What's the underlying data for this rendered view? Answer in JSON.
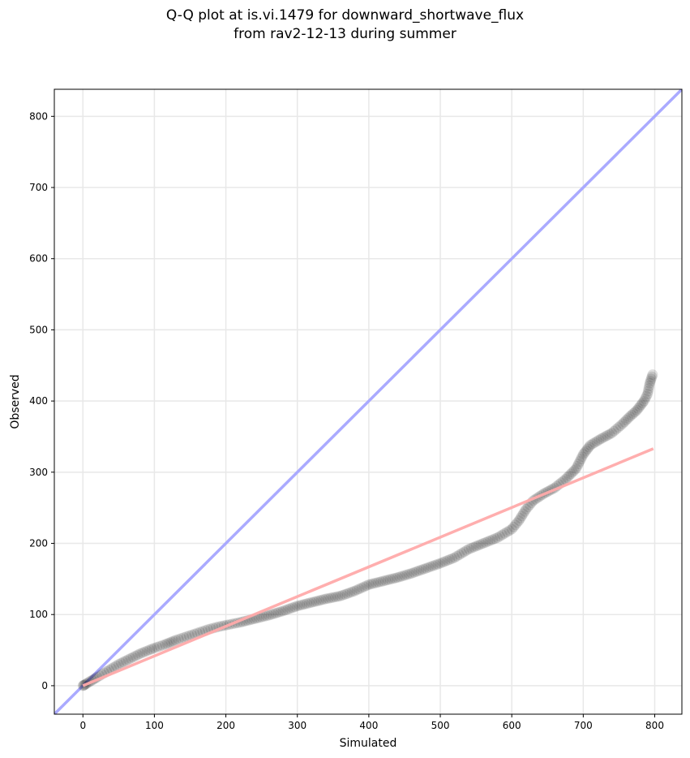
{
  "chart_data": {
    "type": "scatter",
    "title_line1": "Q-Q plot at is.vi.1479 for downward_shortwave_flux",
    "title_line2": "from rav2-12-13 during summer",
    "xlabel": "Simulated",
    "ylabel": "Observed",
    "xlim": [
      -40,
      838
    ],
    "ylim": [
      -40,
      838
    ],
    "xticks": [
      0,
      100,
      200,
      300,
      400,
      500,
      600,
      700,
      800
    ],
    "yticks": [
      0,
      100,
      200,
      300,
      400,
      500,
      600,
      700,
      800
    ],
    "grid": true,
    "identity_line": {
      "name": "1:1 line",
      "color": "#aaaaff",
      "from": [
        -40,
        -40
      ],
      "to": [
        838,
        838
      ]
    },
    "fit_line": {
      "name": "fit",
      "color": "#ffaaaa",
      "from": [
        0,
        0
      ],
      "to": [
        798,
        333
      ]
    },
    "points": [
      [
        0,
        0
      ],
      [
        2,
        1
      ],
      [
        5,
        3
      ],
      [
        10,
        6
      ],
      [
        15,
        9
      ],
      [
        20,
        12
      ],
      [
        30,
        18
      ],
      [
        40,
        24
      ],
      [
        50,
        30
      ],
      [
        60,
        35
      ],
      [
        70,
        40
      ],
      [
        80,
        45
      ],
      [
        90,
        49
      ],
      [
        100,
        53
      ],
      [
        115,
        58
      ],
      [
        130,
        64
      ],
      [
        145,
        69
      ],
      [
        160,
        74
      ],
      [
        175,
        79
      ],
      [
        190,
        83
      ],
      [
        205,
        86
      ],
      [
        220,
        89
      ],
      [
        240,
        94
      ],
      [
        260,
        99
      ],
      [
        280,
        105
      ],
      [
        300,
        112
      ],
      [
        320,
        117
      ],
      [
        340,
        122
      ],
      [
        360,
        126
      ],
      [
        380,
        133
      ],
      [
        400,
        142
      ],
      [
        420,
        147
      ],
      [
        440,
        152
      ],
      [
        460,
        158
      ],
      [
        480,
        165
      ],
      [
        500,
        172
      ],
      [
        520,
        180
      ],
      [
        540,
        192
      ],
      [
        560,
        200
      ],
      [
        580,
        208
      ],
      [
        600,
        220
      ],
      [
        610,
        232
      ],
      [
        620,
        248
      ],
      [
        630,
        260
      ],
      [
        645,
        270
      ],
      [
        660,
        278
      ],
      [
        675,
        290
      ],
      [
        690,
        305
      ],
      [
        700,
        325
      ],
      [
        710,
        338
      ],
      [
        725,
        347
      ],
      [
        740,
        355
      ],
      [
        755,
        368
      ],
      [
        765,
        378
      ],
      [
        775,
        387
      ],
      [
        785,
        400
      ],
      [
        790,
        410
      ],
      [
        793,
        425
      ],
      [
        797,
        437
      ]
    ],
    "point_color": "#000000"
  }
}
